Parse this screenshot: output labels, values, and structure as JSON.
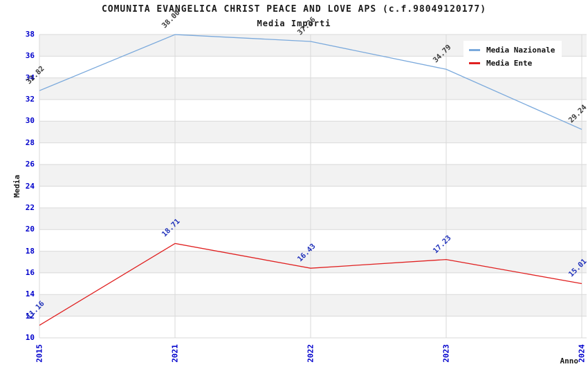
{
  "chart_data": {
    "type": "line",
    "title": "COMUNITA EVANGELICA CHRIST PEACE AND LOVE APS (c.f.98049120177)",
    "subtitle": "Media Importi",
    "xlabel": "Anno",
    "ylabel": "Media",
    "categories": [
      "2015",
      "2021",
      "2022",
      "2023",
      "2024"
    ],
    "series": [
      {
        "name": "Media Nazionale",
        "color": "#7aa9dc",
        "label_color": "#3c3c3c",
        "values": [
          32.82,
          38.0,
          37.36,
          34.79,
          29.24
        ]
      },
      {
        "name": "Media Ente",
        "color": "#e02020",
        "label_color": "#2233bb",
        "values": [
          11.16,
          18.71,
          16.43,
          17.23,
          15.01
        ]
      }
    ],
    "ylim": [
      10,
      38
    ],
    "ytick_step": 2,
    "grid": true,
    "legend_position": "top-right",
    "style": {
      "band_fill": "#f2f2f2",
      "grid_color": "#d9d9d9",
      "tick_color": "#0000cc"
    }
  }
}
